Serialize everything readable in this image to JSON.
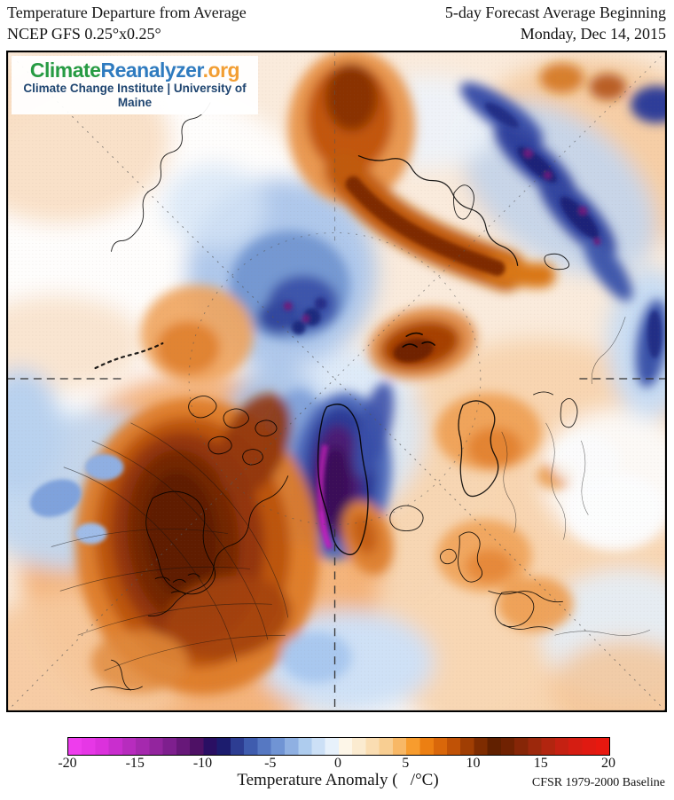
{
  "header": {
    "left_line1": "Temperature Departure from Average",
    "left_line2": "NCEP GFS 0.25°x0.25°",
    "right_line1": "5-day Forecast Average Beginning",
    "right_line2": "Monday, Dec 14, 2015"
  },
  "logo": {
    "part_climate": "Climate",
    "part_reanalyzer": "Reanalyzer",
    "part_org": ".org",
    "subtitle": "Climate Change Institute | University of Maine",
    "colors": {
      "climate": "#279B43",
      "reanalyzer": "#2F7BBF",
      "org": "#F29E33",
      "subtitle": "#1F4570"
    }
  },
  "colorbar": {
    "label": "Temperature Anomaly (   /°C)",
    "baseline_note": "CFSR 1979-2000 Baseline",
    "ticks": [
      "-20",
      "-15",
      "-10",
      "-5",
      "0",
      "5",
      "10",
      "15",
      "20"
    ],
    "unit_range": [
      -20,
      20
    ],
    "stops": [
      "#EE3DED",
      "#E637E6",
      "#DB31DC",
      "#C92ECE",
      "#B72CBE",
      "#A529AE",
      "#93259E",
      "#7E1F8E",
      "#671879",
      "#4E1165",
      "#2A0F63",
      "#1C1C6E",
      "#2D3D92",
      "#3F5CAE",
      "#5678C2",
      "#7094D4",
      "#8FB0E2",
      "#AECCEE",
      "#CCE0F6",
      "#E7F1FB",
      "#FDF6E8",
      "#FBEBD0",
      "#FADDB2",
      "#F8CE92",
      "#F8B866",
      "#F79C2E",
      "#EC7F12",
      "#D9670A",
      "#C05206",
      "#A03E03",
      "#7E2C01",
      "#612000",
      "#702202",
      "#862607",
      "#9C280C",
      "#B2250F",
      "#C52112",
      "#D51D12",
      "#E01A11",
      "#E8180F"
    ]
  }
}
